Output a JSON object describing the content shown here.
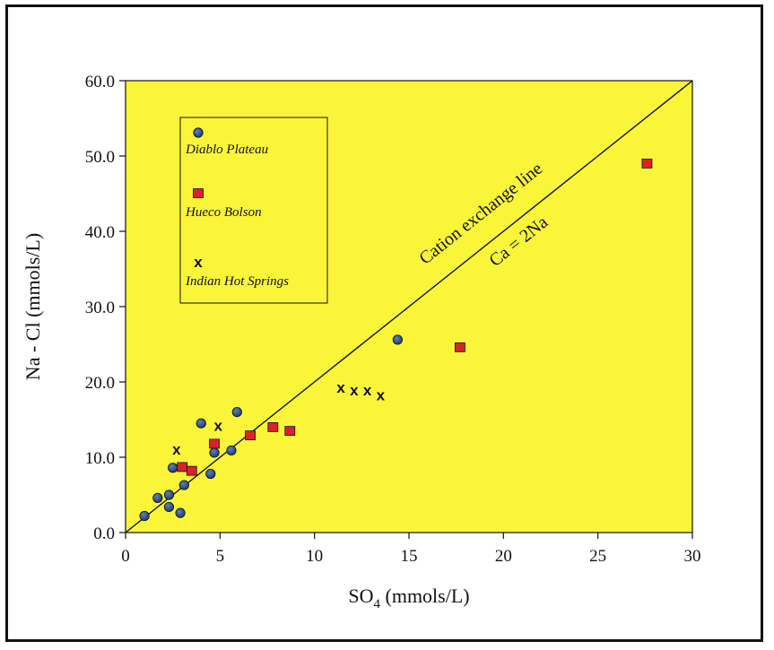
{
  "chart_data": {
    "type": "scatter",
    "xlabel_main": "SO",
    "xlabel_sub": "4",
    "xlabel_rest": " (mmols/L)",
    "ylabel": "Na - Cl (mmols/L)",
    "xlim": [
      0,
      30
    ],
    "ylim": [
      0,
      60
    ],
    "x_ticks": [
      "0",
      "5",
      "10",
      "15",
      "20",
      "25",
      "30"
    ],
    "y_ticks": [
      "0.0",
      "10.0",
      "20.0",
      "30.0",
      "40.0",
      "50.0",
      "60.0"
    ],
    "grid": false,
    "plot_background": "#fbf53a",
    "legend_position": "top-left",
    "series": [
      {
        "name": "Diablo Plateau",
        "marker": "circle",
        "color": "#2b4f7e",
        "points": [
          [
            1.0,
            2.2
          ],
          [
            1.7,
            4.6
          ],
          [
            2.3,
            5.0
          ],
          [
            2.3,
            3.4
          ],
          [
            2.5,
            8.6
          ],
          [
            2.9,
            2.6
          ],
          [
            3.1,
            6.3
          ],
          [
            4.0,
            14.5
          ],
          [
            4.5,
            7.8
          ],
          [
            4.7,
            10.6
          ],
          [
            5.6,
            10.9
          ],
          [
            5.9,
            16.0
          ],
          [
            14.4,
            25.6
          ]
        ]
      },
      {
        "name": "Hueco Bolson",
        "marker": "square",
        "color": "#d8232a",
        "points": [
          [
            3.0,
            8.7
          ],
          [
            3.5,
            8.2
          ],
          [
            4.7,
            11.8
          ],
          [
            6.6,
            12.9
          ],
          [
            7.8,
            14.0
          ],
          [
            8.7,
            13.5
          ],
          [
            17.7,
            24.6
          ],
          [
            27.6,
            49.0
          ]
        ]
      },
      {
        "name": "Indian Hot Springs",
        "marker": "x",
        "color": "#111111",
        "points": [
          [
            2.7,
            11.1
          ],
          [
            4.9,
            14.2
          ],
          [
            11.4,
            19.3
          ],
          [
            12.1,
            18.9
          ],
          [
            12.8,
            18.9
          ],
          [
            13.5,
            18.3
          ]
        ]
      }
    ],
    "reference_line": {
      "from": [
        0,
        0
      ],
      "to": [
        30,
        60
      ],
      "label_line1": "Cation exchange line",
      "label_line2": "Ca = 2Na"
    },
    "legend_marker_x": "x"
  }
}
